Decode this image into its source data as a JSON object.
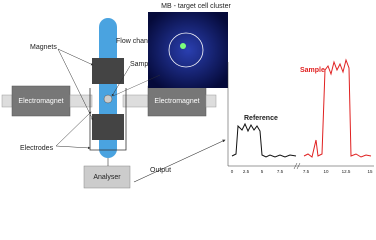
{
  "labels": {
    "magnets": "Magnets",
    "electrodes": "Electrodes",
    "flow_channel": "Flow channel",
    "sample": "Sample",
    "cluster": "MB - target cell cluster",
    "electromagnet_left": "Electromagnet",
    "electromagnet_right": "Electromagnet",
    "analyser": "Analyser",
    "output": "Output",
    "reference_trace": "Reference",
    "sample_trace": "Sample"
  },
  "plot": {
    "x_tick_labels": [
      "0",
      "2.5",
      "5",
      "7.5",
      "7.5",
      "10",
      "12.5",
      "15"
    ]
  }
}
